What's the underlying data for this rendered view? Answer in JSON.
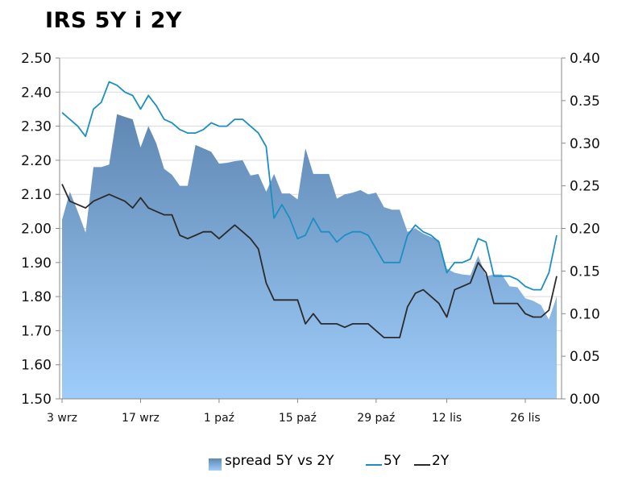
{
  "chart_data": {
    "type": "line",
    "title": "IRS 5Y i 2Y",
    "x": [
      "3 wrz",
      "4 wrz",
      "5 wrz",
      "6 wrz",
      "7 wrz",
      "10 wrz",
      "11 wrz",
      "12 wrz",
      "13 wrz",
      "14 wrz",
      "17 wrz",
      "18 wrz",
      "19 wrz",
      "20 wrz",
      "21 wrz",
      "24 wrz",
      "25 wrz",
      "26 wrz",
      "27 wrz",
      "28 wrz",
      "1 paź",
      "2 paź",
      "3 paź",
      "4 paź",
      "5 paź",
      "8 paź",
      "9 paź",
      "10 paź",
      "11 paź",
      "12 paź",
      "15 paź",
      "16 paź",
      "17 paź",
      "18 paź",
      "19 paź",
      "22 paź",
      "23 paź",
      "24 paź",
      "25 paź",
      "26 paź",
      "29 paź",
      "30 paź",
      "31 paź",
      "2 lis",
      "5 lis",
      "6 lis",
      "7 lis",
      "8 lis",
      "9 lis",
      "12 lis",
      "13 lis",
      "14 lis",
      "15 lis",
      "16 lis",
      "19 lis",
      "20 lis",
      "21 lis",
      "22 lis",
      "23 lis",
      "26 lis",
      "27 lis",
      "28 lis",
      "29 lis",
      "30 lis"
    ],
    "x_ticks": [
      "3 wrz",
      "17 wrz",
      "1 paź",
      "15 paź",
      "29 paź",
      "12 lis",
      "26 lis"
    ],
    "y_left": {
      "ticks": [
        "1.50",
        "1.60",
        "1.70",
        "1.80",
        "1.90",
        "2.00",
        "2.10",
        "2.20",
        "2.30",
        "2.40",
        "2.50"
      ],
      "range": [
        1.5,
        2.5
      ]
    },
    "y_right": {
      "ticks": [
        "0.00",
        "0.05",
        "0.10",
        "0.15",
        "0.20",
        "0.25",
        "0.30",
        "0.35",
        "0.40"
      ],
      "range": [
        0,
        0.4
      ]
    },
    "grid": true,
    "legend_position": "bottom",
    "series": [
      {
        "name": "spread 5Y vs 2Y",
        "kind": "area",
        "axis": "right",
        "colors": {
          "top": "#5f87b2",
          "bottom": "#9fcdfb"
        },
        "values": [
          0.21,
          0.243,
          0.22,
          0.195,
          0.272,
          0.272,
          0.275,
          0.334,
          0.331,
          0.328,
          0.295,
          0.32,
          0.3,
          0.27,
          0.263,
          0.25,
          0.25,
          0.298,
          0.294,
          0.29,
          0.276,
          0.277,
          0.279,
          0.28,
          0.262,
          0.264,
          0.243,
          0.264,
          0.241,
          0.241,
          0.234,
          0.294,
          0.264,
          0.264,
          0.264,
          0.235,
          0.24,
          0.242,
          0.245,
          0.24,
          0.242,
          0.225,
          0.222,
          0.222,
          0.196,
          0.2,
          0.194,
          0.19,
          0.186,
          0.153,
          0.148,
          0.146,
          0.145,
          0.168,
          0.144,
          0.146,
          0.146,
          0.132,
          0.131,
          0.118,
          0.115,
          0.11,
          0.093,
          0.12
        ]
      },
      {
        "name": "5Y",
        "kind": "line",
        "axis": "left",
        "color": "#1c8fc2",
        "values": [
          2.34,
          2.32,
          2.3,
          2.27,
          2.35,
          2.37,
          2.43,
          2.42,
          2.4,
          2.39,
          2.35,
          2.39,
          2.36,
          2.32,
          2.31,
          2.29,
          2.28,
          2.28,
          2.29,
          2.31,
          2.3,
          2.3,
          2.32,
          2.32,
          2.3,
          2.28,
          2.24,
          2.03,
          2.07,
          2.03,
          1.97,
          1.98,
          2.03,
          1.99,
          1.99,
          1.96,
          1.98,
          1.99,
          1.99,
          1.98,
          1.94,
          1.9,
          1.9,
          1.9,
          1.98,
          2.01,
          1.99,
          1.98,
          1.96,
          1.87,
          1.9,
          1.9,
          1.91,
          1.97,
          1.96,
          1.86,
          1.86,
          1.86,
          1.85,
          1.83,
          1.82,
          1.82,
          1.87,
          1.98
        ]
      },
      {
        "name": "2Y",
        "kind": "line",
        "axis": "left",
        "color": "#2b2b2b",
        "values": [
          2.13,
          2.08,
          2.07,
          2.06,
          2.08,
          2.09,
          2.1,
          2.09,
          2.08,
          2.06,
          2.09,
          2.06,
          2.05,
          2.04,
          2.04,
          1.98,
          1.97,
          1.98,
          1.99,
          1.99,
          1.97,
          1.99,
          2.01,
          1.99,
          1.97,
          1.94,
          1.84,
          1.79,
          1.79,
          1.79,
          1.79,
          1.72,
          1.75,
          1.72,
          1.72,
          1.72,
          1.71,
          1.72,
          1.72,
          1.72,
          1.7,
          1.68,
          1.68,
          1.68,
          1.77,
          1.81,
          1.82,
          1.8,
          1.78,
          1.74,
          1.82,
          1.83,
          1.84,
          1.9,
          1.87,
          1.78,
          1.78,
          1.78,
          1.78,
          1.75,
          1.74,
          1.74,
          1.76,
          1.86
        ]
      }
    ]
  }
}
